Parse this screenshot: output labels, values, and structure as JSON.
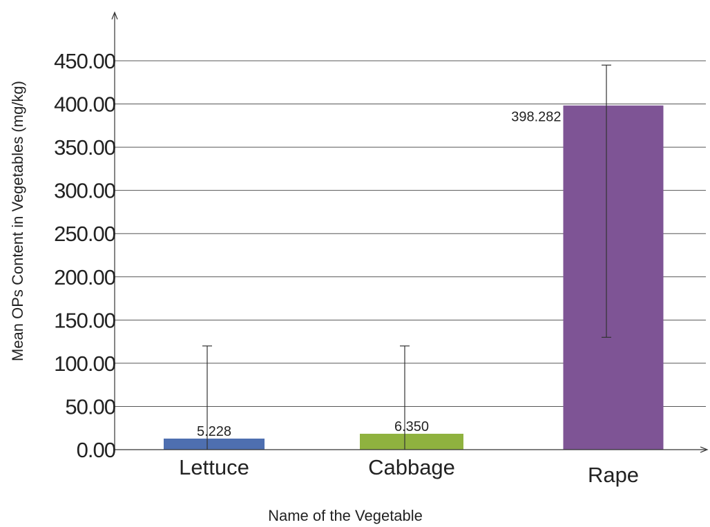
{
  "chart_data": {
    "type": "bar",
    "title": "",
    "xlabel": "Name of the Vegetable",
    "ylabel": "Mean OPs Content in Vegetables  (mg/kg)",
    "ylim": [
      0,
      450
    ],
    "yticks": [
      "0.00",
      "50.00",
      "100.00",
      "150.00",
      "200.00",
      "250.00",
      "300.00",
      "350.00",
      "400.00",
      "450.00"
    ],
    "ytick_values": [
      0,
      50,
      100,
      150,
      200,
      250,
      300,
      350,
      400,
      450
    ],
    "grid": true,
    "categories": [
      "Lettuce",
      "Cabbage",
      "Rape"
    ],
    "values": [
      5.228,
      6.35,
      398.282
    ],
    "data_labels": [
      "5.228",
      "6.350",
      "398.282"
    ],
    "error_bars": [
      {
        "low": 0,
        "high": 120
      },
      {
        "low": 0,
        "high": 120
      },
      {
        "low": 130,
        "high": 445
      }
    ],
    "colors": [
      "#4E6FB0",
      "#8FB23F",
      "#7E5495"
    ]
  }
}
